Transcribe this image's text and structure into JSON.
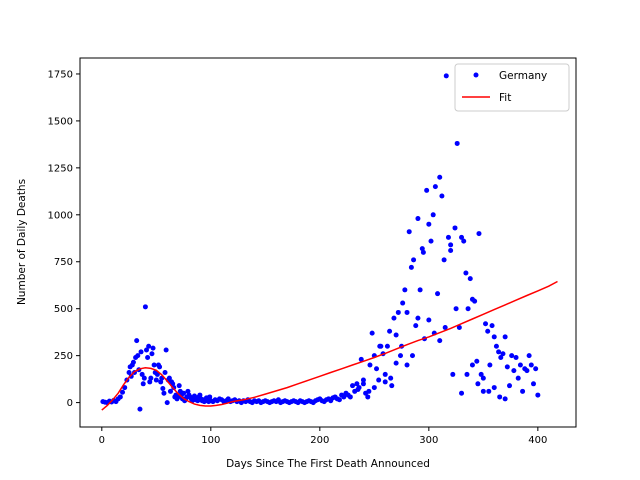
{
  "chart_data": {
    "type": "scatter",
    "title": "",
    "xlabel": "Days Since The First Death Announced",
    "ylabel": "Number of Daily Deaths",
    "xlim": [
      -20,
      435
    ],
    "ylim": [
      -130,
      1835
    ],
    "xticks": [
      0,
      100,
      200,
      300,
      400
    ],
    "yticks": [
      0,
      250,
      500,
      750,
      1000,
      1250,
      1500,
      1750
    ],
    "grid": false,
    "legend_position": "top-right",
    "colors": {
      "data": "#0000ff",
      "fit": "#ff0000"
    },
    "series": [
      {
        "name": "Germany",
        "style": "points",
        "points": [
          [
            1,
            5
          ],
          [
            3,
            2
          ],
          [
            5,
            0
          ],
          [
            7,
            8
          ],
          [
            9,
            3
          ],
          [
            11,
            12
          ],
          [
            13,
            5
          ],
          [
            15,
            20
          ],
          [
            17,
            30
          ],
          [
            19,
            55
          ],
          [
            21,
            80
          ],
          [
            23,
            120
          ],
          [
            25,
            160
          ],
          [
            26,
            190
          ],
          [
            27,
            140
          ],
          [
            28,
            200
          ],
          [
            29,
            215
          ],
          [
            30,
            160
          ],
          [
            31,
            240
          ],
          [
            32,
            330
          ],
          [
            33,
            250
          ],
          [
            34,
            175
          ],
          [
            35,
            -35
          ],
          [
            36,
            270
          ],
          [
            37,
            150
          ],
          [
            38,
            100
          ],
          [
            39,
            130
          ],
          [
            40,
            510
          ],
          [
            41,
            280
          ],
          [
            42,
            240
          ],
          [
            43,
            300
          ],
          [
            44,
            110
          ],
          [
            45,
            130
          ],
          [
            46,
            260
          ],
          [
            47,
            290
          ],
          [
            48,
            200
          ],
          [
            49,
            160
          ],
          [
            50,
            120
          ],
          [
            51,
            150
          ],
          [
            52,
            200
          ],
          [
            53,
            190
          ],
          [
            54,
            110
          ],
          [
            55,
            130
          ],
          [
            56,
            75
          ],
          [
            57,
            50
          ],
          [
            58,
            160
          ],
          [
            59,
            280
          ],
          [
            60,
            0
          ],
          [
            61,
            120
          ],
          [
            62,
            130
          ],
          [
            63,
            60
          ],
          [
            64,
            110
          ],
          [
            65,
            100
          ],
          [
            66,
            80
          ],
          [
            67,
            30
          ],
          [
            68,
            40
          ],
          [
            69,
            20
          ],
          [
            70,
            30
          ],
          [
            71,
            90
          ],
          [
            72,
            60
          ],
          [
            73,
            40
          ],
          [
            74,
            20
          ],
          [
            75,
            50
          ],
          [
            76,
            10
          ],
          [
            77,
            20
          ],
          [
            78,
            30
          ],
          [
            79,
            60
          ],
          [
            80,
            40
          ],
          [
            81,
            30
          ],
          [
            82,
            20
          ],
          [
            83,
            10
          ],
          [
            84,
            20
          ],
          [
            85,
            35
          ],
          [
            86,
            15
          ],
          [
            87,
            20
          ],
          [
            88,
            10
          ],
          [
            89,
            30
          ],
          [
            90,
            40
          ],
          [
            91,
            20
          ],
          [
            92,
            10
          ],
          [
            93,
            15
          ],
          [
            94,
            5
          ],
          [
            95,
            10
          ],
          [
            96,
            25
          ],
          [
            97,
            15
          ],
          [
            98,
            5
          ],
          [
            99,
            30
          ],
          [
            100,
            10
          ],
          [
            102,
            5
          ],
          [
            104,
            15
          ],
          [
            106,
            10
          ],
          [
            108,
            20
          ],
          [
            110,
            15
          ],
          [
            112,
            5
          ],
          [
            114,
            10
          ],
          [
            116,
            20
          ],
          [
            118,
            5
          ],
          [
            120,
            10
          ],
          [
            122,
            15
          ],
          [
            124,
            5
          ],
          [
            126,
            10
          ],
          [
            128,
            0
          ],
          [
            130,
            10
          ],
          [
            132,
            5
          ],
          [
            134,
            15
          ],
          [
            136,
            5
          ],
          [
            138,
            0
          ],
          [
            140,
            10
          ],
          [
            142,
            5
          ],
          [
            144,
            10
          ],
          [
            146,
            0
          ],
          [
            148,
            5
          ],
          [
            150,
            10
          ],
          [
            152,
            5
          ],
          [
            154,
            0
          ],
          [
            156,
            5
          ],
          [
            158,
            10
          ],
          [
            160,
            5
          ],
          [
            162,
            15
          ],
          [
            164,
            0
          ],
          [
            166,
            5
          ],
          [
            168,
            10
          ],
          [
            170,
            5
          ],
          [
            172,
            0
          ],
          [
            174,
            5
          ],
          [
            176,
            10
          ],
          [
            178,
            5
          ],
          [
            180,
            0
          ],
          [
            182,
            10
          ],
          [
            184,
            5
          ],
          [
            186,
            0
          ],
          [
            188,
            5
          ],
          [
            190,
            10
          ],
          [
            192,
            5
          ],
          [
            194,
            0
          ],
          [
            196,
            10
          ],
          [
            198,
            15
          ],
          [
            200,
            20
          ],
          [
            202,
            10
          ],
          [
            204,
            5
          ],
          [
            206,
            15
          ],
          [
            208,
            20
          ],
          [
            210,
            10
          ],
          [
            212,
            25
          ],
          [
            214,
            30
          ],
          [
            216,
            20
          ],
          [
            218,
            15
          ],
          [
            220,
            40
          ],
          [
            222,
            30
          ],
          [
            224,
            50
          ],
          [
            226,
            40
          ],
          [
            228,
            30
          ],
          [
            230,
            90
          ],
          [
            232,
            60
          ],
          [
            234,
            100
          ],
          [
            236,
            80
          ],
          [
            238,
            230
          ],
          [
            240,
            120
          ],
          [
            242,
            50
          ],
          [
            244,
            30
          ],
          [
            246,
            200
          ],
          [
            248,
            370
          ],
          [
            250,
            80
          ],
          [
            252,
            180
          ],
          [
            254,
            120
          ],
          [
            256,
            300
          ],
          [
            258,
            260
          ],
          [
            260,
            150
          ],
          [
            262,
            300
          ],
          [
            264,
            380
          ],
          [
            266,
            90
          ],
          [
            268,
            450
          ],
          [
            270,
            360
          ],
          [
            272,
            480
          ],
          [
            274,
            250
          ],
          [
            276,
            530
          ],
          [
            278,
            600
          ],
          [
            280,
            480
          ],
          [
            282,
            910
          ],
          [
            284,
            720
          ],
          [
            286,
            760
          ],
          [
            288,
            410
          ],
          [
            290,
            980
          ],
          [
            292,
            600
          ],
          [
            294,
            820
          ],
          [
            296,
            340
          ],
          [
            298,
            1130
          ],
          [
            300,
            950
          ],
          [
            302,
            860
          ],
          [
            304,
            1000
          ],
          [
            306,
            1150
          ],
          [
            308,
            580
          ],
          [
            310,
            1200
          ],
          [
            312,
            1100
          ],
          [
            314,
            760
          ],
          [
            316,
            1740
          ],
          [
            318,
            880
          ],
          [
            320,
            840
          ],
          [
            322,
            150
          ],
          [
            324,
            930
          ],
          [
            326,
            1380
          ],
          [
            328,
            400
          ],
          [
            330,
            880
          ],
          [
            332,
            860
          ],
          [
            334,
            690
          ],
          [
            336,
            500
          ],
          [
            338,
            660
          ],
          [
            340,
            550
          ],
          [
            342,
            540
          ],
          [
            344,
            220
          ],
          [
            346,
            900
          ],
          [
            348,
            150
          ],
          [
            350,
            60
          ],
          [
            352,
            420
          ],
          [
            354,
            380
          ],
          [
            356,
            200
          ],
          [
            358,
            410
          ],
          [
            360,
            350
          ],
          [
            362,
            300
          ],
          [
            364,
            270
          ],
          [
            366,
            240
          ],
          [
            368,
            260
          ],
          [
            370,
            350
          ],
          [
            372,
            190
          ],
          [
            374,
            90
          ],
          [
            376,
            250
          ],
          [
            378,
            170
          ],
          [
            380,
            240
          ],
          [
            382,
            130
          ],
          [
            384,
            200
          ],
          [
            386,
            60
          ],
          [
            388,
            180
          ],
          [
            390,
            170
          ],
          [
            392,
            250
          ],
          [
            394,
            200
          ],
          [
            396,
            100
          ],
          [
            398,
            180
          ],
          [
            400,
            40
          ],
          [
            370,
            20
          ],
          [
            365,
            30
          ],
          [
            360,
            80
          ],
          [
            355,
            60
          ],
          [
            350,
            130
          ],
          [
            345,
            100
          ],
          [
            340,
            200
          ],
          [
            335,
            150
          ],
          [
            330,
            50
          ],
          [
            325,
            500
          ],
          [
            320,
            810
          ],
          [
            315,
            400
          ],
          [
            310,
            330
          ],
          [
            305,
            370
          ],
          [
            300,
            440
          ],
          [
            295,
            800
          ],
          [
            290,
            450
          ],
          [
            285,
            250
          ],
          [
            280,
            200
          ],
          [
            275,
            300
          ],
          [
            270,
            210
          ],
          [
            265,
            130
          ],
          [
            260,
            110
          ],
          [
            255,
            300
          ],
          [
            250,
            250
          ],
          [
            245,
            60
          ],
          [
            240,
            100
          ],
          [
            235,
            70
          ]
        ]
      },
      {
        "name": "Fit",
        "style": "line",
        "points": [
          [
            0,
            -40
          ],
          [
            5,
            -15
          ],
          [
            10,
            15
          ],
          [
            15,
            50
          ],
          [
            20,
            95
          ],
          [
            25,
            135
          ],
          [
            30,
            165
          ],
          [
            35,
            180
          ],
          [
            40,
            185
          ],
          [
            45,
            182
          ],
          [
            50,
            172
          ],
          [
            55,
            148
          ],
          [
            60,
            115
          ],
          [
            65,
            80
          ],
          [
            70,
            48
          ],
          [
            75,
            22
          ],
          [
            80,
            5
          ],
          [
            85,
            -8
          ],
          [
            90,
            -15
          ],
          [
            95,
            -18
          ],
          [
            100,
            -18
          ],
          [
            105,
            -15
          ],
          [
            110,
            -10
          ],
          [
            115,
            -3
          ],
          [
            120,
            5
          ],
          [
            130,
            15
          ],
          [
            140,
            28
          ],
          [
            150,
            45
          ],
          [
            160,
            62
          ],
          [
            170,
            80
          ],
          [
            180,
            100
          ],
          [
            190,
            120
          ],
          [
            200,
            140
          ],
          [
            210,
            160
          ],
          [
            220,
            180
          ],
          [
            230,
            200
          ],
          [
            240,
            220
          ],
          [
            250,
            240
          ],
          [
            260,
            262
          ],
          [
            270,
            285
          ],
          [
            280,
            308
          ],
          [
            290,
            330
          ],
          [
            300,
            350
          ],
          [
            310,
            372
          ],
          [
            320,
            395
          ],
          [
            330,
            420
          ],
          [
            340,
            445
          ],
          [
            350,
            470
          ],
          [
            360,
            495
          ],
          [
            370,
            520
          ],
          [
            380,
            545
          ],
          [
            390,
            570
          ],
          [
            400,
            595
          ],
          [
            410,
            620
          ],
          [
            418,
            645
          ]
        ]
      }
    ]
  }
}
